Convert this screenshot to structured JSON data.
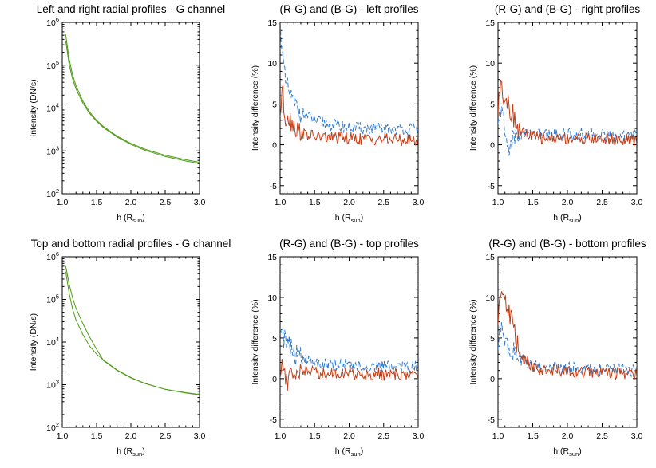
{
  "colors": {
    "green": "#4d9a14",
    "red": "#c13d15",
    "blue": "#2f79cc"
  },
  "chart_data": [
    {
      "type": "line",
      "title": "Left and right radial profiles - G channel",
      "xlabel": "h (R",
      "xlabel_sub": "sun",
      "xlabel_close": ")",
      "ylabel": "Intensity (DN/s)",
      "xlim": [
        1.0,
        3.0
      ],
      "ylim": [
        100,
        1000000
      ],
      "yscale": "log",
      "xticks": [
        "1.0",
        "1.5",
        "2.0",
        "2.5",
        "3.0"
      ],
      "yticks": [
        {
          "value": 100,
          "base": "10",
          "exp": "2"
        },
        {
          "value": 1000,
          "base": "10",
          "exp": "3"
        },
        {
          "value": 10000,
          "base": "10",
          "exp": "4"
        },
        {
          "value": 100000,
          "base": "10",
          "exp": "5"
        },
        {
          "value": 1000000,
          "base": "10",
          "exp": "6"
        }
      ],
      "series": [
        {
          "color": "green",
          "dash": "solid",
          "x": [
            1.05,
            1.1,
            1.15,
            1.2,
            1.3,
            1.4,
            1.5,
            1.6,
            1.8,
            2.0,
            2.2,
            2.5,
            2.8,
            3.0
          ],
          "y": [
            520000,
            140000,
            60000,
            33000,
            14500,
            8000,
            5200,
            3700,
            2200,
            1500,
            1100,
            790,
            620,
            540
          ]
        },
        {
          "color": "green",
          "dash": "solid",
          "x": [
            1.05,
            1.1,
            1.15,
            1.2,
            1.3,
            1.4,
            1.5,
            1.6,
            1.8,
            2.0,
            2.2,
            2.5,
            2.8,
            3.0
          ],
          "y": [
            370000,
            105000,
            48000,
            28000,
            13000,
            7400,
            4900,
            3500,
            2100,
            1420,
            1040,
            740,
            580,
            510
          ]
        }
      ]
    },
    {
      "type": "line",
      "title": "(R-G) and (B-G) - left profiles",
      "xlabel": "h (R",
      "xlabel_sub": "sun",
      "xlabel_close": ")",
      "ylabel": "Intensity difference (%)",
      "xlim": [
        1.0,
        3.0
      ],
      "ylim": [
        -6,
        15
      ],
      "yscale": "linear",
      "xticks": [
        "1.0",
        "1.5",
        "2.0",
        "2.5",
        "3.0"
      ],
      "yticks": [
        {
          "value": -5,
          "label": "-5"
        },
        {
          "value": 0,
          "label": "0"
        },
        {
          "value": 5,
          "label": "5"
        },
        {
          "value": 10,
          "label": "10"
        },
        {
          "value": 15,
          "label": "15"
        }
      ],
      "series": [
        {
          "color": "blue",
          "dash": "dashed",
          "x": [
            1.0,
            1.03,
            1.05,
            1.08,
            1.1,
            1.15,
            1.2,
            1.25,
            1.3,
            1.4,
            1.5,
            1.6,
            1.8,
            2.0,
            2.2,
            2.5,
            2.8,
            3.0
          ],
          "y": [
            15,
            12,
            9,
            7.5,
            7,
            6,
            5,
            4.4,
            4,
            3.4,
            3,
            2.7,
            2.4,
            2.1,
            2,
            1.9,
            1.9,
            1.9
          ]
        },
        {
          "color": "red",
          "dash": "solid",
          "x": [
            1.0,
            1.03,
            1.05,
            1.08,
            1.1,
            1.15,
            1.2,
            1.25,
            1.3,
            1.4,
            1.5,
            1.6,
            1.8,
            2.0,
            2.2,
            2.5,
            2.8,
            3.0
          ],
          "y": [
            3.5,
            7,
            5,
            3,
            4,
            3,
            2.6,
            1.8,
            1.5,
            1.2,
            1,
            0.9,
            0.9,
            0.8,
            0.7,
            0.7,
            0.6,
            0.5
          ]
        }
      ]
    },
    {
      "type": "line",
      "title": "(R-G) and (B-G) - right profiles",
      "xlabel": "h (R",
      "xlabel_sub": "sun",
      "xlabel_close": ")",
      "ylabel": "Intensity difference (%)",
      "xlim": [
        1.0,
        3.0
      ],
      "ylim": [
        -6,
        15
      ],
      "yscale": "linear",
      "xticks": [
        "1.0",
        "1.5",
        "2.0",
        "2.5",
        "3.0"
      ],
      "yticks": [
        {
          "value": -5,
          "label": "-5"
        },
        {
          "value": 0,
          "label": "0"
        },
        {
          "value": 5,
          "label": "5"
        },
        {
          "value": 10,
          "label": "10"
        },
        {
          "value": 15,
          "label": "15"
        }
      ],
      "series": [
        {
          "color": "blue",
          "dash": "dashed",
          "x": [
            1.0,
            1.03,
            1.05,
            1.08,
            1.1,
            1.15,
            1.2,
            1.25,
            1.3,
            1.4,
            1.5,
            1.6,
            1.8,
            2.0,
            2.2,
            2.5,
            2.8,
            3.0
          ],
          "y": [
            2,
            4,
            5,
            3,
            1,
            -0.3,
            0.5,
            1,
            1.2,
            1.3,
            1.4,
            1.3,
            1.3,
            1.3,
            1.3,
            1.2,
            1.2,
            1.2
          ]
        },
        {
          "color": "red",
          "dash": "solid",
          "x": [
            1.0,
            1.03,
            1.05,
            1.08,
            1.1,
            1.15,
            1.2,
            1.25,
            1.3,
            1.4,
            1.5,
            1.6,
            1.8,
            2.0,
            2.2,
            2.5,
            2.8,
            3.0
          ],
          "y": [
            4,
            7,
            9.5,
            5,
            6.5,
            5,
            4,
            3,
            2,
            1.3,
            1,
            0.9,
            0.8,
            0.8,
            0.8,
            0.7,
            0.6,
            0.5
          ]
        }
      ]
    },
    {
      "type": "line",
      "title": "Top and bottom radial profiles - G channel",
      "xlabel": "h (R",
      "xlabel_sub": "sun",
      "xlabel_close": ")",
      "ylabel": "Intensity (DN/s)",
      "xlim": [
        1.0,
        3.0
      ],
      "ylim": [
        100,
        1000000
      ],
      "yscale": "log",
      "xticks": [
        "1.0",
        "1.5",
        "2.0",
        "2.5",
        "3.0"
      ],
      "yticks": [
        {
          "value": 100,
          "base": "10",
          "exp": "2"
        },
        {
          "value": 1000,
          "base": "10",
          "exp": "3"
        },
        {
          "value": 10000,
          "base": "10",
          "exp": "4"
        },
        {
          "value": 100000,
          "base": "10",
          "exp": "5"
        },
        {
          "value": 1000000,
          "base": "10",
          "exp": "6"
        }
      ],
      "series": [
        {
          "color": "green",
          "dash": "solid",
          "x": [
            1.05,
            1.1,
            1.15,
            1.2,
            1.3,
            1.4,
            1.5,
            1.6,
            1.8,
            2.0,
            2.2,
            2.5,
            2.8,
            3.0
          ],
          "y": [
            600000,
            230000,
            110000,
            62000,
            27000,
            13000,
            6800,
            3700,
            2150,
            1450,
            1070,
            780,
            650,
            590
          ]
        },
        {
          "color": "green",
          "dash": "solid",
          "x": [
            1.05,
            1.1,
            1.15,
            1.2,
            1.3,
            1.4,
            1.5,
            1.6,
            1.8,
            2.0,
            2.2,
            2.5,
            2.8,
            3.0
          ],
          "y": [
            450000,
            140000,
            60000,
            33000,
            15000,
            8000,
            5200,
            3800,
            2200,
            1480,
            1080,
            780,
            640,
            580
          ]
        }
      ]
    },
    {
      "type": "line",
      "title": "(R-G) and (B-G) - top profiles",
      "xlabel": "h (R",
      "xlabel_sub": "sun",
      "xlabel_close": ")",
      "ylabel": "Intensity difference (%)",
      "xlim": [
        1.0,
        3.0
      ],
      "ylim": [
        -6,
        15
      ],
      "yscale": "linear",
      "xticks": [
        "1.0",
        "1.5",
        "2.0",
        "2.5",
        "3.0"
      ],
      "yticks": [
        {
          "value": -5,
          "label": "-5"
        },
        {
          "value": 0,
          "label": "0"
        },
        {
          "value": 5,
          "label": "5"
        },
        {
          "value": 10,
          "label": "10"
        },
        {
          "value": 15,
          "label": "15"
        }
      ],
      "series": [
        {
          "color": "blue",
          "dash": "dashed",
          "x": [
            1.0,
            1.03,
            1.05,
            1.08,
            1.1,
            1.15,
            1.2,
            1.25,
            1.3,
            1.4,
            1.5,
            1.6,
            1.8,
            2.0,
            2.2,
            2.5,
            2.8,
            3.0
          ],
          "y": [
            7,
            6,
            5,
            4.5,
            4.2,
            3.8,
            3.2,
            2.8,
            2.5,
            2.2,
            2,
            1.8,
            1.7,
            1.6,
            1.5,
            1.5,
            1.5,
            1.4
          ]
        },
        {
          "color": "red",
          "dash": "solid",
          "x": [
            1.0,
            1.03,
            1.05,
            1.08,
            1.1,
            1.15,
            1.2,
            1.25,
            1.3,
            1.4,
            1.5,
            1.6,
            1.8,
            2.0,
            2.2,
            2.5,
            2.8,
            3.0
          ],
          "y": [
            0,
            1.5,
            2,
            0.5,
            -1.5,
            1,
            0.3,
            1,
            1.2,
            0.8,
            1,
            0.6,
            0.7,
            0.6,
            0.5,
            0.5,
            0.4,
            0.4
          ]
        }
      ]
    },
    {
      "type": "line",
      "title": "(R-G) and (B-G) - bottom profiles",
      "xlabel": "h (R",
      "xlabel_sub": "sun",
      "xlabel_close": ")",
      "ylabel": "Intensity difference (%)",
      "xlim": [
        1.0,
        3.0
      ],
      "ylim": [
        -6,
        15
      ],
      "yscale": "linear",
      "xticks": [
        "1.0",
        "1.5",
        "2.0",
        "2.5",
        "3.0"
      ],
      "yticks": [
        {
          "value": -5,
          "label": "-5"
        },
        {
          "value": 0,
          "label": "0"
        },
        {
          "value": 5,
          "label": "5"
        },
        {
          "value": 10,
          "label": "10"
        },
        {
          "value": 15,
          "label": "15"
        }
      ],
      "series": [
        {
          "color": "blue",
          "dash": "dashed",
          "x": [
            1.0,
            1.03,
            1.05,
            1.08,
            1.1,
            1.15,
            1.2,
            1.25,
            1.3,
            1.4,
            1.5,
            1.6,
            1.8,
            2.0,
            2.2,
            2.5,
            2.8,
            3.0
          ],
          "y": [
            4,
            5.5,
            6,
            5,
            4.5,
            4,
            3.5,
            3,
            2.5,
            1.8,
            1.5,
            1.4,
            1.3,
            1.3,
            1.2,
            1.2,
            1.1,
            1
          ]
        },
        {
          "color": "red",
          "dash": "solid",
          "x": [
            1.0,
            1.03,
            1.05,
            1.08,
            1.1,
            1.15,
            1.2,
            1.25,
            1.3,
            1.4,
            1.5,
            1.6,
            1.8,
            2.0,
            2.2,
            2.5,
            2.8,
            3.0
          ],
          "y": [
            8,
            10,
            12,
            11,
            9.5,
            8.5,
            7,
            5,
            3.5,
            2.2,
            1.5,
            1.2,
            1,
            0.9,
            0.8,
            0.7,
            0.6,
            0.5
          ]
        }
      ]
    }
  ]
}
